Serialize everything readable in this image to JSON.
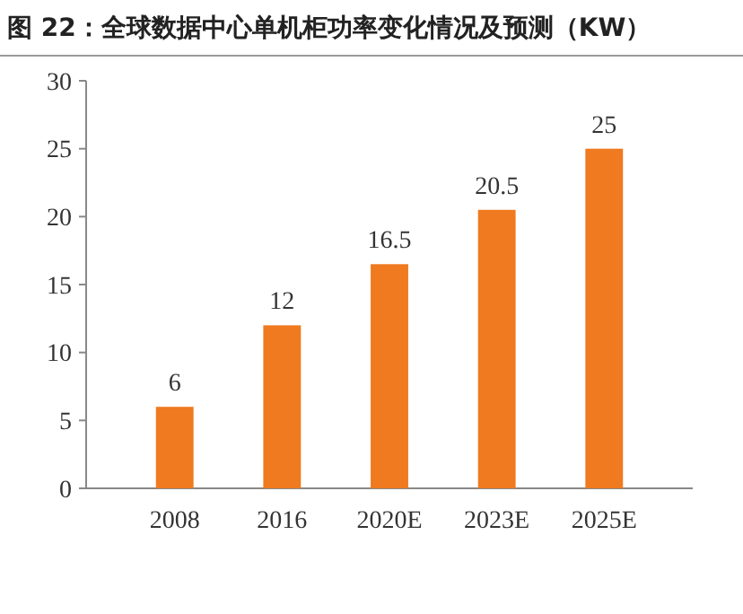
{
  "chart_data": {
    "type": "bar",
    "title": "图 22：全球数据中心单机柜功率变化情况及预测（KW）",
    "categories": [
      "2008",
      "2016",
      "2020E",
      "2023E",
      "2025E"
    ],
    "values": [
      6,
      12,
      16.5,
      20.5,
      25
    ],
    "color": "#ef7a1f",
    "ylim": [
      0,
      30
    ],
    "yticks": [
      0,
      5,
      10,
      15,
      20,
      25,
      30
    ],
    "data_labels": true
  }
}
